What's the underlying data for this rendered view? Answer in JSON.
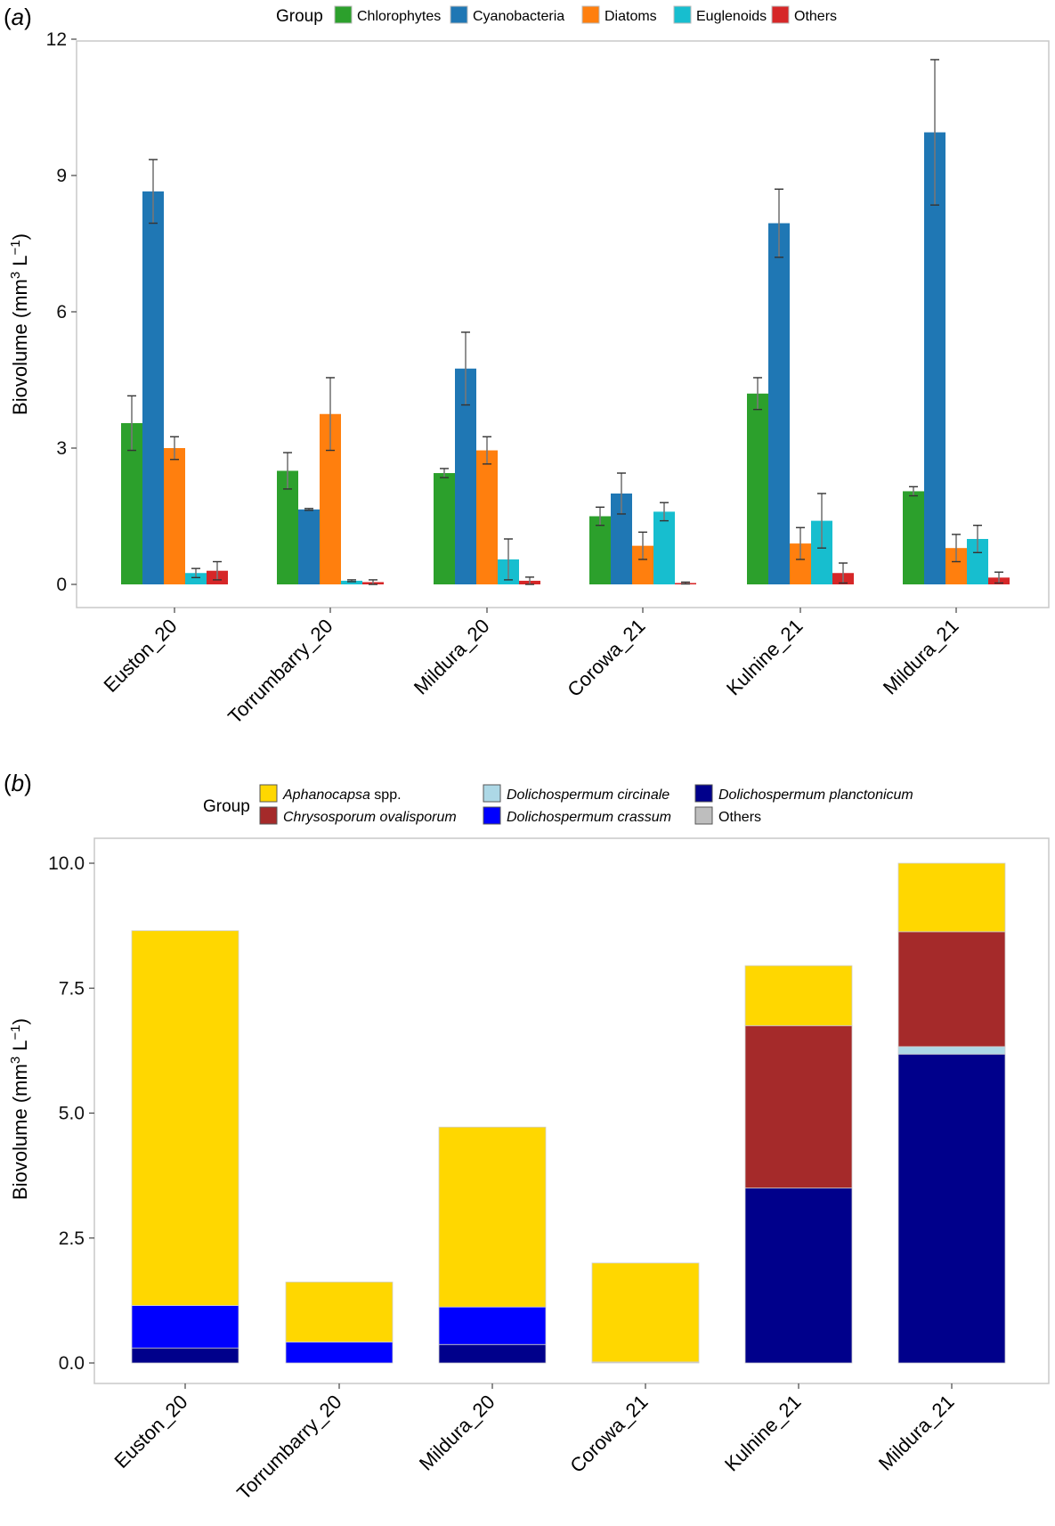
{
  "panels": {
    "a": {
      "label": "(a)",
      "legend_title": "Group"
    },
    "b": {
      "label": "(b)",
      "legend_title": "Group"
    }
  },
  "chart_data": [
    {
      "type": "bar",
      "id": "a",
      "title": "",
      "xlabel": "",
      "ylabel": "Biovolume (mm³ L⁻¹)",
      "ylim": [
        0,
        12
      ],
      "yticks": [
        0,
        3,
        6,
        9,
        12
      ],
      "yticklabels": [
        "0",
        "3",
        "6",
        "9",
        "12"
      ],
      "categories": [
        "Euston_20",
        "Torrumbarry_20",
        "Mildura_20",
        "Corowa_21",
        "Kulnine_21",
        "Mildura_21"
      ],
      "series": [
        {
          "name": "Chlorophytes",
          "color": "#2ca02c",
          "values": [
            3.55,
            2.5,
            2.45,
            1.5,
            4.2,
            2.05
          ],
          "errors": [
            0.6,
            0.4,
            0.1,
            0.2,
            0.35,
            0.1
          ]
        },
        {
          "name": "Cyanobacteria",
          "color": "#1f77b4",
          "values": [
            8.65,
            1.65,
            4.75,
            2.0,
            7.95,
            9.95
          ],
          "errors": [
            0.7,
            0.02,
            0.8,
            0.45,
            0.75,
            1.6
          ]
        },
        {
          "name": "Diatoms",
          "color": "#ff7f0e",
          "values": [
            3.0,
            3.75,
            2.95,
            0.85,
            0.9,
            0.8
          ],
          "errors": [
            0.25,
            0.8,
            0.3,
            0.3,
            0.35,
            0.3
          ]
        },
        {
          "name": "Euglenoids",
          "color": "#17becf",
          "values": [
            0.25,
            0.08,
            0.55,
            1.6,
            1.4,
            1.0
          ],
          "errors": [
            0.1,
            0.02,
            0.45,
            0.2,
            0.6,
            0.3
          ]
        },
        {
          "name": "Others",
          "color": "#d62728",
          "values": [
            0.3,
            0.05,
            0.08,
            0.03,
            0.25,
            0.15
          ],
          "errors": [
            0.2,
            0.05,
            0.08,
            0.02,
            0.22,
            0.12
          ]
        }
      ],
      "legend_position": "top"
    },
    {
      "type": "bar",
      "stacked": true,
      "id": "b",
      "title": "",
      "xlabel": "",
      "ylabel": "Biovolume (mm³ L⁻¹)",
      "ylim": [
        0,
        10
      ],
      "yticks": [
        0,
        2.5,
        5,
        7.5,
        10
      ],
      "yticklabels": [
        "0.0",
        "2.5",
        "5.0",
        "7.5",
        "10.0"
      ],
      "categories": [
        "Euston_20",
        "Torrumbarry_20",
        "Mildura_20",
        "Corowa_21",
        "Kulnine_21",
        "Mildura_21"
      ],
      "series": [
        {
          "name": "Dolichospermum planctonicum",
          "color": "#00008b",
          "values": [
            0.3,
            0.0,
            0.37,
            0.0,
            3.5,
            6.18
          ]
        },
        {
          "name": "Dolichospermum crassum",
          "color": "#0000ff",
          "values": [
            0.85,
            0.42,
            0.75,
            0.0,
            0.0,
            0.0
          ]
        },
        {
          "name": "Dolichospermum circinale",
          "color": "#add8e6",
          "values": [
            0.0,
            0.0,
            0.0,
            0.0,
            0.0,
            0.15
          ]
        },
        {
          "name": "Chrysosporum ovalisporum",
          "color": "#a52a2a",
          "values": [
            0.0,
            0.0,
            0.0,
            0.0,
            3.25,
            2.3
          ]
        },
        {
          "name": "Others",
          "color": "#bebebe",
          "values": [
            0.0,
            0.0,
            0.0,
            0.02,
            0.0,
            0.0
          ]
        },
        {
          "name": "Aphanocapsa spp.",
          "color": "#ffd700",
          "values": [
            7.5,
            1.2,
            3.6,
            1.98,
            1.2,
            1.37
          ]
        }
      ],
      "legend_items": [
        {
          "name": "Aphanocapsa",
          "suffix": " spp.",
          "color": "#ffd700"
        },
        {
          "name": "Chrysosporum ovalisporum",
          "suffix": "",
          "color": "#a52a2a"
        },
        {
          "name": "Dolichospermum circinale",
          "suffix": "",
          "color": "#add8e6"
        },
        {
          "name": "Dolichospermum crassum",
          "suffix": "",
          "color": "#0000ff"
        },
        {
          "name": "Dolichospermum planctonicum",
          "suffix": "",
          "color": "#00008b"
        },
        {
          "name": "Others",
          "suffix": "",
          "color": "#bebebe"
        }
      ],
      "legend_position": "top"
    }
  ]
}
